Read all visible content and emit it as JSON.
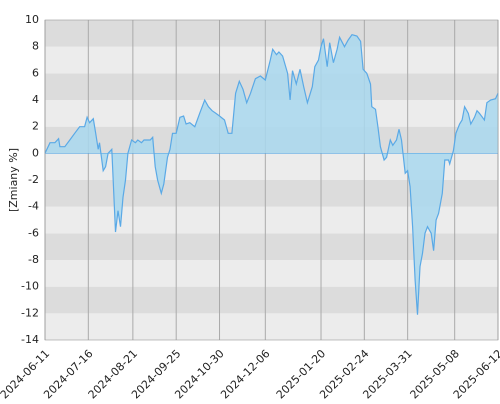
{
  "chart_data": {
    "type": "area",
    "y_label": "[Zmiany %]",
    "x": [
      "2024-06-11",
      "2024-06-15",
      "2024-06-19",
      "2024-06-22",
      "2024-06-23",
      "2024-06-27",
      "2024-07-01",
      "2024-07-05",
      "2024-07-09",
      "2024-07-13",
      "2024-07-15",
      "2024-07-17",
      "2024-07-20",
      "2024-07-22",
      "2024-07-24",
      "2024-07-25",
      "2024-07-28",
      "2024-07-30",
      "2024-08-01",
      "2024-08-04",
      "2024-08-07",
      "2024-08-09",
      "2024-08-11",
      "2024-08-13",
      "2024-08-15",
      "2024-08-17",
      "2024-08-20",
      "2024-08-23",
      "2024-08-25",
      "2024-08-28",
      "2024-08-30",
      "2024-09-04",
      "2024-09-06",
      "2024-09-08",
      "2024-09-10",
      "2024-09-13",
      "2024-09-15",
      "2024-09-18",
      "2024-09-20",
      "2024-09-22",
      "2024-09-25",
      "2024-09-28",
      "2024-10-01",
      "2024-10-03",
      "2024-10-06",
      "2024-10-10",
      "2024-10-14",
      "2024-10-18",
      "2024-10-21",
      "2024-10-24",
      "2024-10-27",
      "2024-10-30",
      "2024-11-03",
      "2024-11-06",
      "2024-11-09",
      "2024-11-12",
      "2024-11-15",
      "2024-11-18",
      "2024-11-21",
      "2024-11-24",
      "2024-11-28",
      "2024-12-02",
      "2024-12-06",
      "2024-12-10",
      "2024-12-12",
      "2024-12-15",
      "2024-12-17",
      "2024-12-20",
      "2024-12-24",
      "2024-12-26",
      "2024-12-28",
      "2024-12-31",
      "2025-01-03",
      "2025-01-06",
      "2025-01-09",
      "2025-01-13",
      "2025-01-15",
      "2025-01-18",
      "2025-01-20",
      "2025-01-22",
      "2025-01-25",
      "2025-01-27",
      "2025-01-30",
      "2025-02-02",
      "2025-02-04",
      "2025-02-08",
      "2025-02-11",
      "2025-02-14",
      "2025-02-18",
      "2025-02-21",
      "2025-02-23",
      "2025-02-26",
      "2025-03-01",
      "2025-03-02",
      "2025-03-05",
      "2025-03-07",
      "2025-03-09",
      "2025-03-12",
      "2025-03-14",
      "2025-03-17",
      "2025-03-19",
      "2025-03-22",
      "2025-03-24",
      "2025-03-26",
      "2025-03-29",
      "2025-03-31",
      "2025-04-02",
      "2025-04-04",
      "2025-04-06",
      "2025-04-08",
      "2025-04-10",
      "2025-04-12",
      "2025-04-14",
      "2025-04-16",
      "2025-04-19",
      "2025-04-21",
      "2025-04-23",
      "2025-04-25",
      "2025-04-28",
      "2025-04-30",
      "2025-05-03",
      "2025-05-04",
      "2025-05-07",
      "2025-05-09",
      "2025-05-12",
      "2025-05-14",
      "2025-05-16",
      "2025-05-19",
      "2025-05-21",
      "2025-05-24",
      "2025-05-26",
      "2025-05-28",
      "2025-06-01",
      "2025-06-03",
      "2025-06-06",
      "2025-06-10",
      "2025-06-12"
    ],
    "series": [
      {
        "color": "#5aa9e6",
        "values": [
          0,
          0.8,
          0.8,
          1.1,
          0.5,
          0.5,
          1.0,
          1.5,
          2.0,
          2.0,
          2.7,
          2.3,
          2.6,
          1.5,
          0.3,
          0.8,
          -1.3,
          -1.0,
          0,
          0.3,
          -5.9,
          -4.3,
          -5.5,
          -3.3,
          -2.0,
          0,
          1.0,
          0.8,
          1.0,
          0.8,
          1.0,
          1.0,
          1.2,
          -1.0,
          -2.0,
          -3.0,
          -2.3,
          -0.3,
          0.3,
          1.5,
          1.5,
          2.7,
          2.8,
          2.2,
          2.3,
          2.0,
          3.0,
          4.0,
          3.5,
          3.2,
          3.0,
          2.8,
          2.5,
          1.5,
          1.5,
          4.5,
          5.4,
          4.8,
          3.8,
          4.5,
          5.6,
          5.8,
          5.5,
          7.0,
          7.8,
          7.4,
          7.6,
          7.3,
          6.0,
          4.0,
          6.2,
          5.2,
          6.3,
          5.0,
          3.8,
          5.0,
          6.5,
          7.0,
          8.0,
          8.6,
          6.5,
          8.3,
          6.8,
          7.8,
          8.7,
          8.0,
          8.5,
          8.9,
          8.8,
          8.4,
          6.3,
          6.0,
          5.2,
          3.5,
          3.3,
          2.0,
          0.5,
          -0.5,
          -0.3,
          1.0,
          0.6,
          1.0,
          1.8,
          1.0,
          -1.5,
          -1.3,
          -2.5,
          -5.5,
          -9.5,
          -12.1,
          -8.5,
          -7.5,
          -6.0,
          -5.5,
          -6.0,
          -7.3,
          -5.0,
          -4.5,
          -3.0,
          -0.5,
          -0.5,
          -0.8,
          0.2,
          1.5,
          2.2,
          2.5,
          3.5,
          3.0,
          2.2,
          2.7,
          3.2,
          3.0,
          2.5,
          3.8,
          4.0,
          4.1,
          4.5
        ]
      }
    ],
    "xlim": [
      "2024-06-11",
      "2025-06-12"
    ],
    "xticks": [
      "2024-06-11",
      "2024-07-16",
      "2024-08-21",
      "2024-09-25",
      "2024-10-30",
      "2024-12-06",
      "2025-01-20",
      "2025-02-24",
      "2025-03-31",
      "2025-05-08",
      "2025-06-12"
    ],
    "ylim": [
      -14,
      10
    ],
    "yticks": [
      -14,
      -12,
      -10,
      -8,
      -6,
      -4,
      -2,
      0,
      2,
      4,
      6,
      8,
      10
    ],
    "band_colors": [
      "#dcdcdc",
      "#ececec"
    ],
    "fill": "#a9d8ef",
    "grid": true
  }
}
